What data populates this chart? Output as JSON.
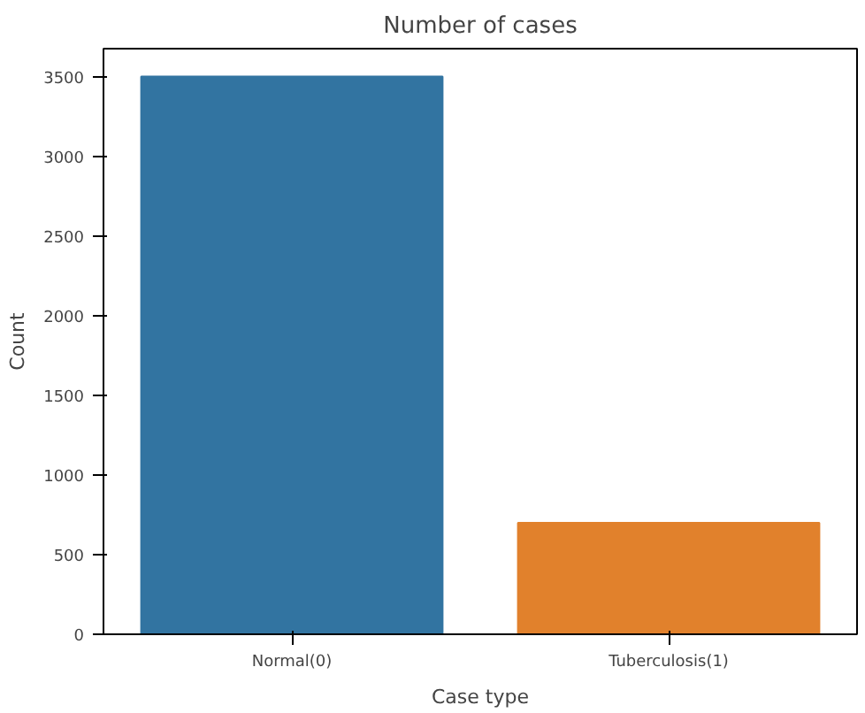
{
  "chart_data": {
    "type": "bar",
    "title": "Number of cases",
    "xlabel": "Case type",
    "ylabel": "Count",
    "categories": [
      "Normal(0)",
      "Tuberculosis(1)"
    ],
    "values": [
      3500,
      700
    ],
    "colors": [
      "#3274a1",
      "#e1812c"
    ],
    "ylim": [
      0,
      3675
    ],
    "yticks": [
      0,
      500,
      1000,
      1500,
      2000,
      2500,
      3000,
      3500
    ],
    "grid": false
  }
}
